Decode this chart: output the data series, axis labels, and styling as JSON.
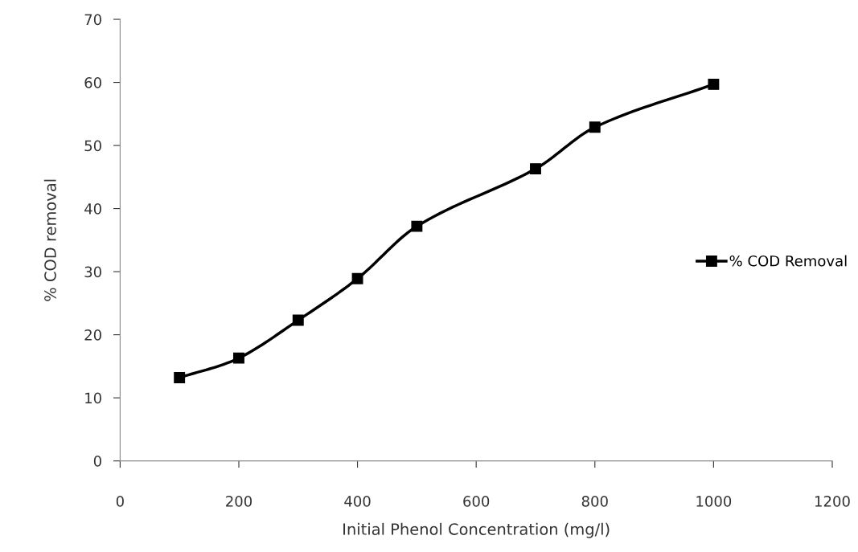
{
  "chart_data": {
    "type": "line",
    "xlabel": "Initial Phenol Concentration (mg/l)",
    "ylabel": "% COD removal",
    "x": [
      100,
      200,
      300,
      400,
      500,
      700,
      800,
      1000
    ],
    "series": [
      {
        "name": "% COD Removal",
        "color": "#000000",
        "values": [
          13.2,
          16.3,
          22.3,
          28.9,
          37.2,
          46.3,
          52.9,
          59.7
        ]
      }
    ],
    "xlim": [
      0,
      1200
    ],
    "xticks": [
      0,
      200,
      400,
      600,
      800,
      1000,
      1200
    ],
    "ylim": [
      0,
      70
    ],
    "yticks": [
      0,
      10,
      20,
      30,
      40,
      50,
      60,
      70
    ],
    "marker": "square",
    "line_style": "solid",
    "legend": "right",
    "grid": false
  }
}
